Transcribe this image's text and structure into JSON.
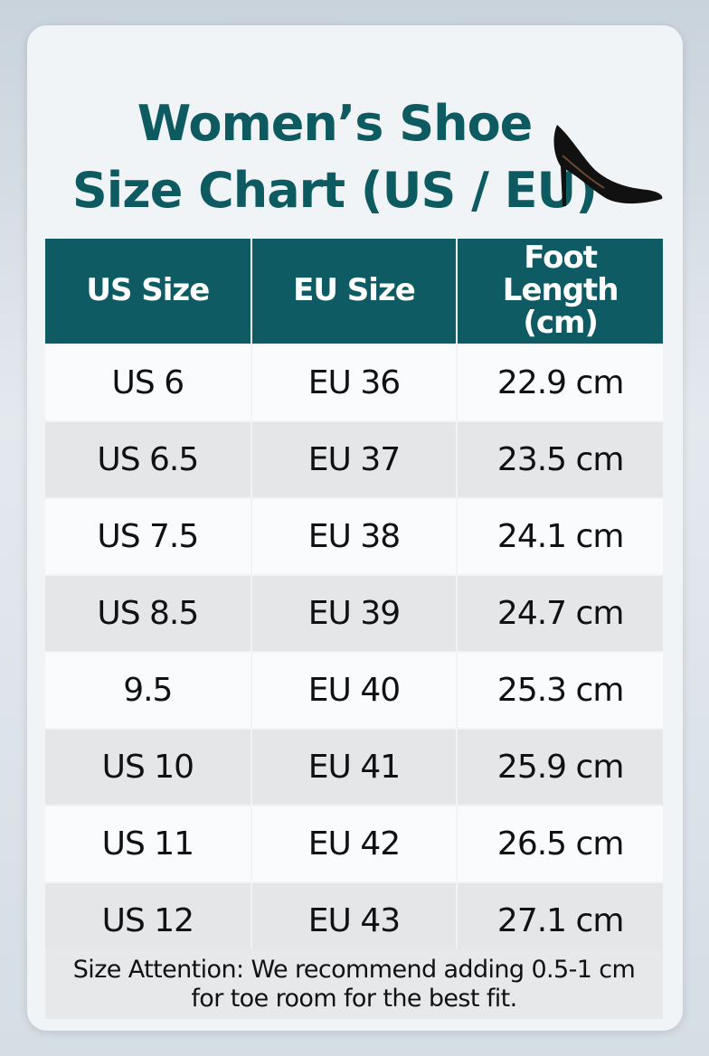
{
  "header": {
    "title_lines": [
      "Women’s Shoe",
      "Size Chart (US / EU)"
    ]
  },
  "table": {
    "columns": [
      "US Size",
      "EU Size",
      "Foot Length (cm)"
    ],
    "rows": [
      [
        "US 6",
        "EU 36",
        "22.9 cm"
      ],
      [
        "US 6.5",
        "EU 37",
        "23.5 cm"
      ],
      [
        "US 7.5",
        "EU 38",
        "24.1 cm"
      ],
      [
        "US 8.5",
        "EU 39",
        "24.7 cm"
      ],
      [
        "9.5",
        "EU 40",
        "25.3 cm"
      ],
      [
        "US 10",
        "EU 41",
        "25.9 cm"
      ],
      [
        "US 11",
        "EU 42",
        "26.5 cm"
      ],
      [
        "US 12",
        "EU 43",
        "27.1 cm"
      ]
    ]
  },
  "note": "Size Attention: We recommend adding 0.5-1 cm for toe room for the best fit."
}
